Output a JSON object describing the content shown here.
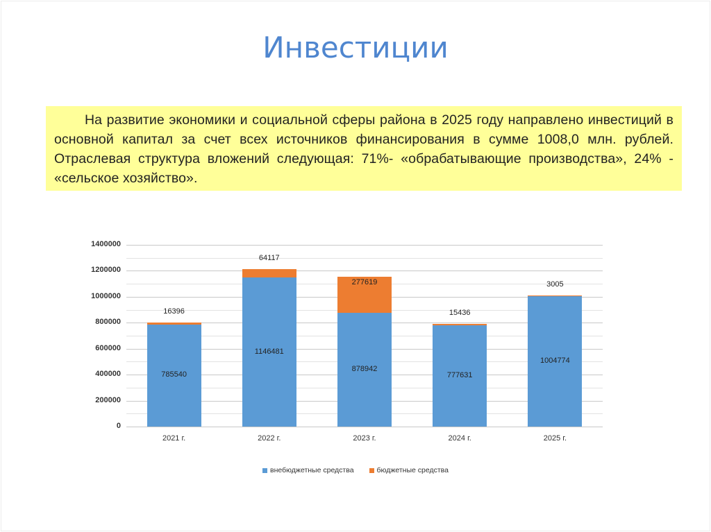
{
  "title": "Инвестиции",
  "summary": "На развитие экономики и социальной сферы района в 2025 году направлено инвестиций в основной капитал за счет всех источников финансирования в сумме 1008,0 млн. рублей. Отраслевая структура вложений следующая: 71%- «обрабатывающие производства», 24% - «сельское хозяйство».",
  "colors": {
    "title": "#4f86cf",
    "textbox_bg": "#ffff99",
    "series_1": "#5b9bd5",
    "series_2": "#ed7d31"
  },
  "y_ticks": [
    "1400000",
    "1200000",
    "1000000",
    "800000",
    "600000",
    "400000",
    "200000",
    "0"
  ],
  "chart_data": {
    "type": "bar",
    "stacked": true,
    "title": "",
    "xlabel": "",
    "ylabel": "",
    "categories": [
      "2021 г.",
      "2022 г.",
      "2023 г.",
      "2024 г.",
      "2025 г."
    ],
    "series": [
      {
        "name": "внебюджетные средства",
        "color": "#5b9bd5",
        "values": [
          785540,
          1146481,
          878942,
          777631,
          1004774
        ]
      },
      {
        "name": "бюджетные средства",
        "color": "#ed7d31",
        "values": [
          16396,
          64117,
          277619,
          15436,
          3005
        ]
      }
    ],
    "ylim": [
      0,
      1400000
    ],
    "y_major_step": 200000,
    "y_minor_step": 100000,
    "grid": true,
    "legend_position": "bottom"
  },
  "legend": [
    {
      "label": "внебюджетные средства"
    },
    {
      "label": "бюджетные средства"
    }
  ]
}
